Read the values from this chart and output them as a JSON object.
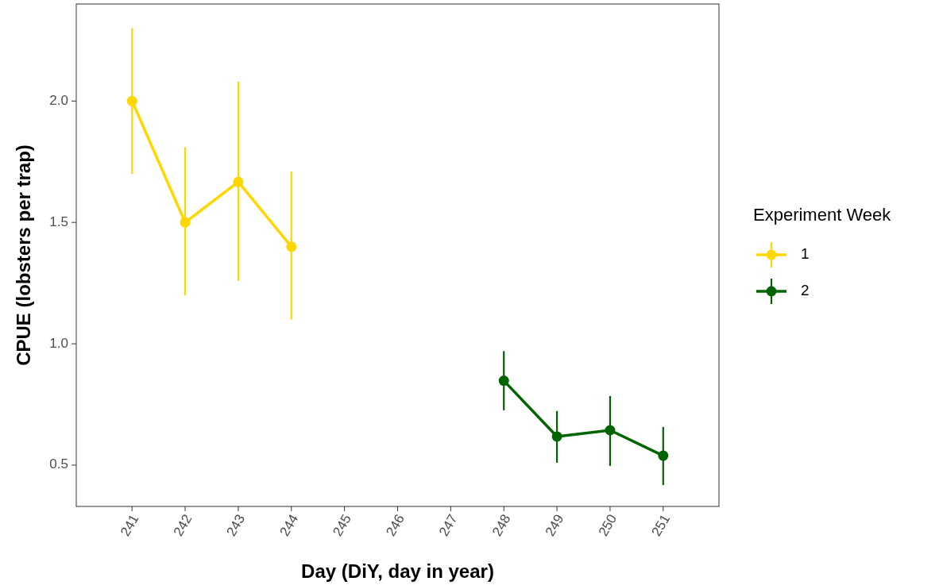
{
  "chart_data": {
    "type": "line",
    "xlabel": "Day (DiY, day in year)",
    "ylabel": "CPUE (lobsters per trap)",
    "legend_title": "Experiment Week",
    "legend": "right",
    "grid": false,
    "marker": "circle",
    "line_style": "solid",
    "xlim": [
      239.95,
      252.05
    ],
    "xticks": [
      241,
      242,
      243,
      244,
      245,
      246,
      247,
      248,
      249,
      250,
      251
    ],
    "ylim": [
      0.33,
      2.4
    ],
    "yticks": [
      {
        "value": 0.5,
        "label": "0.5"
      },
      {
        "value": 1,
        "label": "1.0"
      },
      {
        "value": 1.5,
        "label": "1.5"
      },
      {
        "value": 2,
        "label": "2.0"
      }
    ],
    "series": [
      {
        "name": "1",
        "color": "#ffd700",
        "x": [
          241,
          242,
          243,
          244
        ],
        "values": [
          2.0,
          1.5,
          1.667,
          1.4
        ],
        "errors": [
          [
            1.7,
            2.3
          ],
          [
            1.2,
            1.81
          ],
          [
            1.26,
            2.08
          ],
          [
            1.1,
            1.71
          ]
        ]
      },
      {
        "name": "2",
        "color": "#006400",
        "x": [
          248,
          249,
          250,
          251
        ],
        "values": [
          0.848,
          0.618,
          0.644,
          0.539
        ],
        "errors": [
          [
            0.726,
            0.97
          ],
          [
            0.51,
            0.723
          ],
          [
            0.497,
            0.785
          ],
          [
            0.418,
            0.657
          ]
        ]
      }
    ]
  }
}
